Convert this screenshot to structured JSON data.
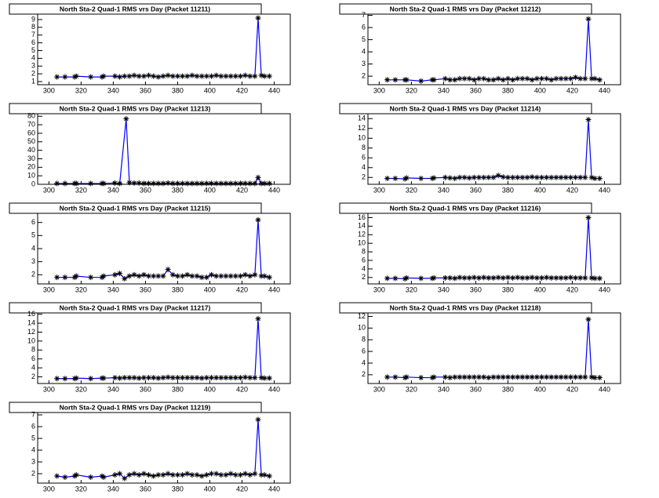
{
  "chart_data": [
    {
      "type": "line",
      "title": "North Sta-2 Quad-1 RMS vrs Day (Packet 11211)",
      "color": "#0000ff",
      "marker_color": "#000000",
      "x": [
        305,
        310,
        316,
        317,
        326,
        333,
        334,
        341,
        344,
        347,
        350,
        353,
        356,
        359,
        362,
        365,
        368,
        371,
        374,
        377,
        380,
        383,
        386,
        389,
        392,
        395,
        398,
        401,
        404,
        407,
        410,
        413,
        416,
        419,
        422,
        425,
        428,
        430,
        432,
        434,
        437
      ],
      "values": [
        1.6,
        1.6,
        1.6,
        1.7,
        1.6,
        1.6,
        1.7,
        1.7,
        1.6,
        1.7,
        1.7,
        1.8,
        1.7,
        1.7,
        1.8,
        1.7,
        1.6,
        1.7,
        1.8,
        1.7,
        1.7,
        1.7,
        1.7,
        1.8,
        1.7,
        1.7,
        1.7,
        1.7,
        1.8,
        1.7,
        1.7,
        1.7,
        1.7,
        1.7,
        1.8,
        1.7,
        1.7,
        9.2,
        1.8,
        1.7,
        1.7
      ],
      "xlim": [
        293,
        450
      ],
      "xticks": [
        300,
        320,
        340,
        360,
        380,
        400,
        420,
        440
      ],
      "ylim": [
        0.6,
        9.7
      ],
      "yticks": [
        1,
        2,
        3,
        4,
        5,
        6,
        7,
        8,
        9
      ]
    },
    {
      "type": "line",
      "title": "North Sta-2 Quad-1 RMS vrs Day (Packet 11212)",
      "color": "#0000ff",
      "marker_color": "#000000",
      "x": [
        305,
        310,
        316,
        317,
        326,
        333,
        334,
        341,
        344,
        347,
        350,
        353,
        356,
        359,
        362,
        365,
        368,
        371,
        374,
        377,
        380,
        383,
        386,
        389,
        392,
        395,
        398,
        401,
        404,
        407,
        410,
        413,
        416,
        419,
        422,
        425,
        428,
        430,
        432,
        434,
        437
      ],
      "values": [
        1.7,
        1.7,
        1.7,
        1.7,
        1.6,
        1.7,
        1.7,
        1.8,
        1.7,
        1.7,
        1.8,
        1.8,
        1.8,
        1.7,
        1.8,
        1.8,
        1.7,
        1.7,
        1.8,
        1.7,
        1.8,
        1.7,
        1.8,
        1.8,
        1.8,
        1.7,
        1.8,
        1.8,
        1.8,
        1.7,
        1.8,
        1.8,
        1.8,
        1.8,
        1.9,
        1.8,
        1.8,
        6.7,
        1.8,
        1.8,
        1.7
      ],
      "xlim": [
        293,
        450
      ],
      "xticks": [
        300,
        320,
        340,
        360,
        380,
        400,
        420,
        440
      ],
      "ylim": [
        1.3,
        7.1
      ],
      "yticks": [
        2,
        3,
        4,
        5,
        6,
        7
      ]
    },
    {
      "type": "line",
      "title": "North Sta-2 Quad-1 RMS vrs Day (Packet 11213)",
      "color": "#0000ff",
      "marker_color": "#000000",
      "x": [
        305,
        310,
        316,
        317,
        326,
        333,
        334,
        341,
        344,
        348,
        350,
        353,
        356,
        359,
        362,
        365,
        368,
        371,
        374,
        377,
        380,
        383,
        386,
        389,
        392,
        395,
        398,
        401,
        404,
        407,
        410,
        413,
        416,
        419,
        422,
        425,
        428,
        430,
        432,
        434,
        437
      ],
      "values": [
        1,
        1,
        1,
        1,
        1,
        1,
        1,
        1.5,
        1,
        77,
        2,
        1.5,
        1.5,
        1,
        1,
        1,
        1,
        1,
        1.5,
        1,
        1,
        1,
        1,
        1,
        1,
        1,
        1,
        1,
        1,
        1,
        1,
        1,
        1,
        1,
        1,
        1,
        1,
        8,
        1,
        1,
        1
      ],
      "xlim": [
        293,
        450
      ],
      "xticks": [
        300,
        320,
        340,
        360,
        380,
        400,
        420,
        440
      ],
      "ylim": [
        0,
        83
      ],
      "yticks": [
        0,
        10,
        20,
        30,
        40,
        50,
        60,
        70,
        80
      ]
    },
    {
      "type": "line",
      "title": "North Sta-2 Quad-1 RMS vrs Day (Packet 11214)",
      "color": "#0000ff",
      "marker_color": "#000000",
      "x": [
        305,
        310,
        316,
        317,
        326,
        333,
        334,
        341,
        344,
        347,
        350,
        353,
        356,
        359,
        362,
        365,
        368,
        371,
        374,
        377,
        380,
        383,
        386,
        389,
        392,
        395,
        398,
        401,
        404,
        407,
        410,
        413,
        416,
        419,
        422,
        425,
        428,
        430,
        432,
        434,
        437
      ],
      "values": [
        1.8,
        1.8,
        1.7,
        1.9,
        1.8,
        1.8,
        1.9,
        2,
        1.9,
        1.8,
        2,
        2,
        1.9,
        2,
        2,
        2,
        2,
        2,
        2.4,
        2.1,
        2,
        2,
        2,
        2,
        2,
        2.1,
        2,
        2,
        2,
        2,
        2,
        2,
        2,
        2,
        2,
        2,
        2,
        13.8,
        2,
        1.8,
        1.8
      ],
      "xlim": [
        293,
        450
      ],
      "xticks": [
        300,
        320,
        340,
        360,
        380,
        400,
        420,
        440
      ],
      "ylim": [
        0.6,
        15
      ],
      "yticks": [
        2,
        4,
        6,
        8,
        10,
        12,
        14
      ]
    },
    {
      "type": "line",
      "title": "North Sta-2 Quad-1 RMS vrs Day (Packet 11215)",
      "color": "#0000ff",
      "marker_color": "#000000",
      "x": [
        305,
        310,
        316,
        317,
        326,
        333,
        334,
        341,
        344,
        347,
        350,
        353,
        356,
        359,
        362,
        365,
        368,
        371,
        374,
        377,
        380,
        383,
        386,
        389,
        392,
        395,
        398,
        401,
        404,
        407,
        410,
        413,
        416,
        419,
        422,
        425,
        428,
        430,
        432,
        434,
        437
      ],
      "values": [
        1.8,
        1.8,
        1.8,
        1.9,
        1.8,
        1.8,
        1.9,
        2,
        2.1,
        1.7,
        1.9,
        2,
        1.9,
        2,
        1.9,
        1.9,
        1.9,
        1.9,
        2.4,
        2,
        1.9,
        1.9,
        2,
        1.9,
        1.9,
        1.8,
        1.8,
        2,
        1.9,
        1.9,
        1.9,
        1.9,
        1.9,
        1.9,
        2,
        1.9,
        2,
        6.2,
        1.9,
        1.9,
        1.8
      ],
      "xlim": [
        293,
        450
      ],
      "xticks": [
        300,
        320,
        340,
        360,
        380,
        400,
        420,
        440
      ],
      "ylim": [
        1.3,
        6.7
      ],
      "yticks": [
        2,
        3,
        4,
        5,
        6
      ]
    },
    {
      "type": "line",
      "title": "North Sta-2 Quad-1 RMS vrs Day (Packet 11216)",
      "color": "#0000ff",
      "marker_color": "#000000",
      "x": [
        305,
        310,
        316,
        317,
        326,
        333,
        334,
        341,
        344,
        347,
        350,
        353,
        356,
        359,
        362,
        365,
        368,
        371,
        374,
        377,
        380,
        383,
        386,
        389,
        392,
        395,
        398,
        401,
        404,
        407,
        410,
        413,
        416,
        419,
        422,
        425,
        428,
        430,
        432,
        434,
        437
      ],
      "values": [
        1.8,
        1.8,
        1.7,
        1.9,
        1.8,
        1.8,
        1.9,
        1.9,
        1.9,
        1.8,
        2,
        1.9,
        1.9,
        2,
        1.9,
        2,
        1.9,
        1.9,
        2,
        1.9,
        2,
        1.9,
        2,
        1.9,
        1.9,
        2,
        1.9,
        1.9,
        2,
        1.9,
        1.9,
        1.9,
        1.9,
        2,
        1.9,
        1.9,
        1.9,
        16,
        1.9,
        1.8,
        1.8
      ],
      "xlim": [
        293,
        450
      ],
      "xticks": [
        300,
        320,
        340,
        360,
        380,
        400,
        420,
        440
      ],
      "ylim": [
        0.5,
        17
      ],
      "yticks": [
        2,
        4,
        6,
        8,
        10,
        12,
        14,
        16
      ]
    },
    {
      "type": "line",
      "title": "North Sta-2 Quad-1 RMS vrs Day (Packet 11217)",
      "color": "#0000ff",
      "marker_color": "#000000",
      "x": [
        305,
        310,
        316,
        317,
        326,
        333,
        334,
        341,
        344,
        347,
        350,
        353,
        356,
        359,
        362,
        365,
        368,
        371,
        374,
        377,
        380,
        383,
        386,
        389,
        392,
        395,
        398,
        401,
        404,
        407,
        410,
        413,
        416,
        419,
        422,
        425,
        428,
        430,
        432,
        434,
        437
      ],
      "values": [
        1.6,
        1.6,
        1.6,
        1.7,
        1.6,
        1.7,
        1.7,
        1.8,
        1.7,
        1.8,
        1.8,
        1.8,
        1.7,
        1.8,
        1.8,
        1.8,
        1.7,
        1.8,
        1.9,
        1.8,
        1.8,
        1.8,
        1.8,
        1.8,
        1.8,
        1.7,
        1.8,
        1.8,
        1.8,
        1.8,
        1.8,
        1.8,
        1.8,
        1.8,
        1.9,
        1.8,
        1.8,
        15,
        1.8,
        1.7,
        1.7
      ],
      "xlim": [
        293,
        450
      ],
      "xticks": [
        300,
        320,
        340,
        360,
        380,
        400,
        420,
        440
      ],
      "ylim": [
        0.5,
        16.3
      ],
      "yticks": [
        2,
        4,
        6,
        8,
        10,
        12,
        14,
        16
      ]
    },
    {
      "type": "line",
      "title": "North Sta-2 Quad-1 RMS vrs Day (Packet 11218)",
      "color": "#0000ff",
      "marker_color": "#000000",
      "x": [
        305,
        310,
        316,
        317,
        326,
        333,
        334,
        341,
        344,
        347,
        350,
        353,
        356,
        359,
        362,
        365,
        368,
        371,
        374,
        377,
        380,
        383,
        386,
        389,
        392,
        395,
        398,
        401,
        404,
        407,
        410,
        413,
        416,
        419,
        422,
        425,
        428,
        430,
        432,
        434,
        437
      ],
      "values": [
        1.6,
        1.6,
        1.5,
        1.6,
        1.5,
        1.5,
        1.6,
        1.6,
        1.5,
        1.6,
        1.6,
        1.6,
        1.6,
        1.6,
        1.6,
        1.6,
        1.5,
        1.6,
        1.6,
        1.6,
        1.6,
        1.6,
        1.6,
        1.6,
        1.6,
        1.6,
        1.6,
        1.6,
        1.6,
        1.6,
        1.6,
        1.6,
        1.6,
        1.6,
        1.6,
        1.6,
        1.6,
        11.5,
        1.6,
        1.5,
        1.5
      ],
      "xlim": [
        293,
        450
      ],
      "xticks": [
        300,
        320,
        340,
        360,
        380,
        400,
        420,
        440
      ],
      "ylim": [
        0.5,
        12.6
      ],
      "yticks": [
        2,
        4,
        6,
        8,
        10,
        12
      ]
    },
    {
      "type": "line",
      "title": "North Sta-2 Quad-1 RMS vrs Day (Packet 11219)",
      "color": "#0000ff",
      "marker_color": "#000000",
      "x": [
        305,
        310,
        316,
        317,
        326,
        333,
        334,
        341,
        344,
        347,
        350,
        353,
        356,
        359,
        362,
        365,
        368,
        371,
        374,
        377,
        380,
        383,
        386,
        389,
        392,
        395,
        398,
        401,
        404,
        407,
        410,
        413,
        416,
        419,
        422,
        425,
        428,
        430,
        432,
        434,
        437
      ],
      "values": [
        1.8,
        1.7,
        1.8,
        1.9,
        1.7,
        1.8,
        1.7,
        1.9,
        2,
        1.6,
        1.9,
        2,
        1.9,
        2,
        1.9,
        1.8,
        1.9,
        1.9,
        2,
        1.9,
        1.9,
        1.9,
        2,
        1.9,
        1.9,
        1.8,
        1.9,
        2,
        2,
        1.9,
        1.9,
        2,
        1.9,
        1.9,
        2,
        1.9,
        2,
        6.6,
        1.9,
        1.9,
        1.8
      ],
      "xlim": [
        293,
        450
      ],
      "xticks": [
        300,
        320,
        340,
        360,
        380,
        400,
        420,
        440
      ],
      "ylim": [
        1.2,
        7.2
      ],
      "yticks": [
        2,
        3,
        4,
        5,
        6,
        7
      ]
    }
  ]
}
